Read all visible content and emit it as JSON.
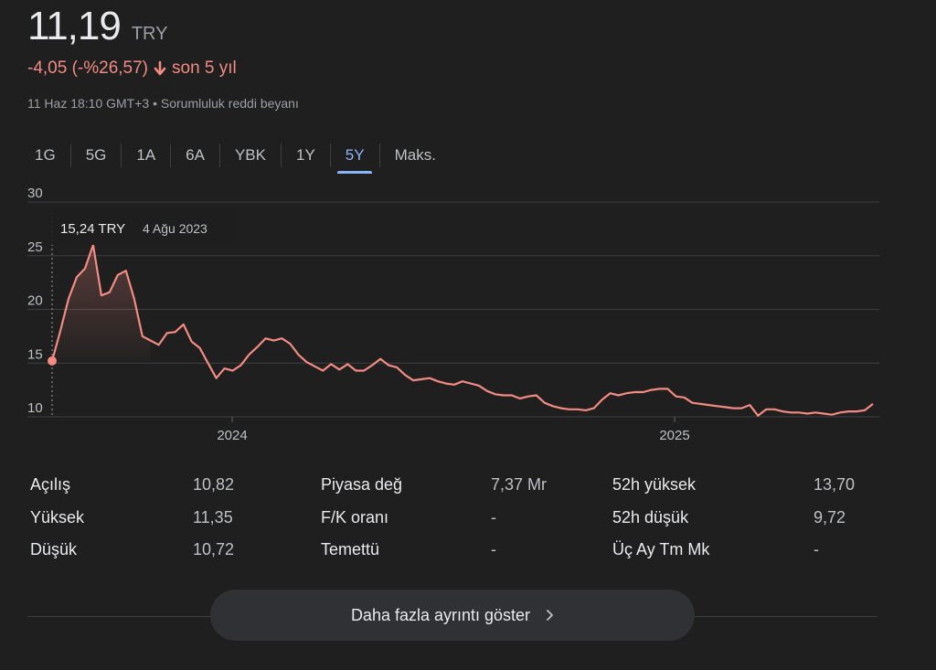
{
  "quote": {
    "price": "11,19",
    "currency": "TRY",
    "change": "-4,05 (-%26,57)",
    "period": "son 5 yıl",
    "timestamp": "11 Haz 18:10 GMT+3",
    "separator": "•",
    "disclaimer": "Sorumluluk reddi beyanı"
  },
  "colors": {
    "down": "#f28b82",
    "accent": "#8ab4f8"
  },
  "tabs": [
    {
      "label": "1G"
    },
    {
      "label": "5G"
    },
    {
      "label": "1A"
    },
    {
      "label": "6A"
    },
    {
      "label": "YBK"
    },
    {
      "label": "1Y"
    },
    {
      "label": "5Y",
      "active": true
    },
    {
      "label": "Maks."
    }
  ],
  "tooltip": {
    "value": "15,24 TRY",
    "date": "4 Ağu 2023"
  },
  "chart_data": {
    "type": "area",
    "ylim": [
      10,
      30
    ],
    "yticks": [
      "30",
      "25",
      "20",
      "15",
      "10"
    ],
    "xticks": [
      "2024",
      "2025"
    ],
    "grid": true,
    "series": [
      {
        "values": [
          15.2,
          18.0,
          21.0,
          23.0,
          23.8,
          26.0,
          21.3,
          21.6,
          23.2,
          23.6,
          21.0,
          17.5,
          17.1,
          16.7,
          17.8,
          17.9,
          18.6,
          17.0,
          16.4,
          15.0,
          13.6,
          14.5,
          14.3,
          14.8,
          15.8,
          16.5,
          17.3,
          17.1,
          17.3,
          16.8,
          15.8,
          15.1,
          14.7,
          14.3,
          14.9,
          14.4,
          14.9,
          14.3,
          14.3,
          14.8,
          15.4,
          14.8,
          14.6,
          13.9,
          13.4,
          13.5,
          13.6,
          13.3,
          13.1,
          13.0,
          13.3,
          13.1,
          12.9,
          12.4,
          12.1,
          12.0,
          12.0,
          11.7,
          11.9,
          12.0,
          11.3,
          11.0,
          10.8,
          10.7,
          10.7,
          10.6,
          10.8,
          11.6,
          12.2,
          12.0,
          12.2,
          12.3,
          12.3,
          12.5,
          12.6,
          12.6,
          11.9,
          11.8,
          11.3,
          11.2,
          11.1,
          11.0,
          10.9,
          10.8,
          10.8,
          11.1,
          10.1,
          10.7,
          10.7,
          10.5,
          10.4,
          10.4,
          10.3,
          10.4,
          10.3,
          10.2,
          10.4,
          10.5,
          10.5,
          10.6,
          11.2
        ]
      }
    ]
  },
  "stats": [
    {
      "label": "Açılış",
      "value": "10,82"
    },
    {
      "label": "Yüksek",
      "value": "11,35"
    },
    {
      "label": "Düşük",
      "value": "10,72"
    },
    {
      "label": "Piyasa değ",
      "value": "7,37 Mr"
    },
    {
      "label": "F/K oranı",
      "value": "-"
    },
    {
      "label": "Temettü",
      "value": "-"
    },
    {
      "label": "52h yüksek",
      "value": "13,70"
    },
    {
      "label": "52h düşük",
      "value": "9,72"
    },
    {
      "label": "Üç Ay Tm Mk",
      "value": "-"
    }
  ],
  "more_button": {
    "label": "Daha fazla ayrıntı göster",
    "icon": "chevron-right-icon"
  }
}
